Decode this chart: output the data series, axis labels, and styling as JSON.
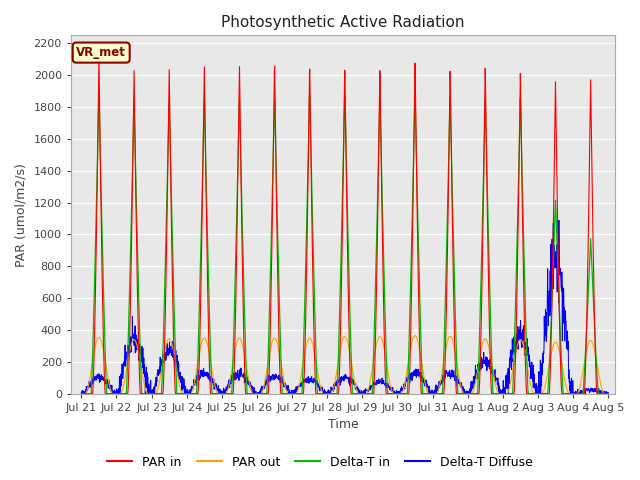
{
  "title": "Photosynthetic Active Radiation",
  "ylabel": "PAR (umol/m2/s)",
  "xlabel": "Time",
  "ylim": [
    0,
    2250
  ],
  "yticks": [
    0,
    200,
    400,
    600,
    800,
    1000,
    1200,
    1400,
    1600,
    1800,
    2000,
    2200
  ],
  "xtick_labels": [
    "Jul 21",
    "Jul 22",
    "Jul 23",
    "Jul 24",
    "Jul 25",
    "Jul 26",
    "Jul 27",
    "Jul 28",
    "Jul 29",
    "Jul 30",
    "Jul 31",
    "Aug 1",
    "Aug 2",
    "Aug 3",
    "Aug 4",
    "Aug 5"
  ],
  "legend_label": "VR_met",
  "series_labels": [
    "PAR in",
    "PAR out",
    "Delta-T in",
    "Delta-T Diffuse"
  ],
  "series_colors": [
    "#ff0000",
    "#ffa500",
    "#00bb00",
    "#0000ff"
  ],
  "fig_bg_color": "#ffffff",
  "plot_bg_color": "#e8e8e8",
  "grid_color": "#ffffff",
  "title_fontsize": 11,
  "axis_fontsize": 9,
  "tick_fontsize": 8,
  "legend_fontsize": 9,
  "day_peaks_PAR_in": [
    2120,
    2040,
    2055,
    2080,
    2090,
    2100,
    2090,
    2090,
    2080,
    2120,
    2060,
    2070,
    2030,
    1970,
    1975
  ],
  "day_peaks_PAR_out": [
    355,
    340,
    345,
    350,
    350,
    350,
    350,
    360,
    360,
    365,
    360,
    345,
    340,
    325,
    335
  ],
  "day_peaks_DeltaT": [
    1900,
    1840,
    1860,
    1855,
    1865,
    1875,
    1910,
    1905,
    1880,
    1895,
    1885,
    1865,
    1865,
    1220,
    975
  ],
  "day_peaks_Diffuse": [
    105,
    335,
    275,
    130,
    125,
    110,
    90,
    100,
    75,
    130,
    125,
    200,
    375,
    830,
    25
  ],
  "num_days": 15,
  "pts_per_day": 144
}
